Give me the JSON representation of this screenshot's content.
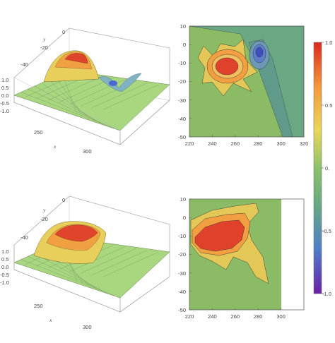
{
  "chart_data": [
    {
      "type": "surface3d",
      "panel": "top-left",
      "xlabel": "x",
      "ylabel": "y",
      "x_ticks": [
        "250",
        "300"
      ],
      "y_ticks": [
        "0",
        "-20",
        "-40"
      ],
      "z_ticks": [
        "1.0",
        "0.5",
        "0.0",
        "-0.5",
        "-1.0"
      ],
      "x_range": [
        220,
        320
      ],
      "y_range": [
        -50,
        10
      ],
      "z_range": [
        -1,
        1
      ],
      "features": [
        {
          "kind": "peak",
          "x": 250,
          "y": -12,
          "z": 0.85
        },
        {
          "kind": "trough",
          "x": 280,
          "y": -5,
          "z": -0.55
        }
      ]
    },
    {
      "type": "contour",
      "panel": "top-right",
      "x_ticks": [
        "220",
        "240",
        "260",
        "280",
        "300",
        "320"
      ],
      "y_ticks": [
        "10",
        "0",
        "-10",
        "-20",
        "-30",
        "-40",
        "-50"
      ],
      "x_range": [
        220,
        320
      ],
      "y_range": [
        -50,
        10
      ],
      "levels": [
        -0.75,
        -0.5,
        -0.25,
        0.25,
        0.5,
        0.75
      ],
      "features": [
        {
          "kind": "peak",
          "x": 250,
          "y": -12,
          "z": 0.85
        },
        {
          "kind": "trough",
          "x": 280,
          "y": -5,
          "z": -0.55
        }
      ]
    },
    {
      "type": "colorbar",
      "panel": "legend",
      "ticks": [
        "1.0",
        "0.5",
        "0.",
        "-0.5",
        "-1.0"
      ],
      "range": [
        -1,
        1
      ],
      "colors": [
        "#dd2a1e",
        "#f39b3c",
        "#e9d65a",
        "#8cc26b",
        "#67a883",
        "#4f7fc8",
        "#6a1fa8"
      ]
    },
    {
      "type": "surface3d",
      "panel": "bottom-left",
      "xlabel": "x",
      "ylabel": "y",
      "x_ticks": [
        "250",
        "300"
      ],
      "y_ticks": [
        "0",
        "-20",
        "-40"
      ],
      "z_ticks": [
        "1.0",
        "0.5",
        "0.0",
        "-0.5",
        "-1.0"
      ],
      "x_range": [
        220,
        320
      ],
      "y_range": [
        -50,
        10
      ],
      "z_range": [
        -1,
        1
      ],
      "features": [
        {
          "kind": "peak",
          "x": 240,
          "y": -12,
          "z": 0.9
        }
      ]
    },
    {
      "type": "contour",
      "panel": "bottom-right",
      "x_ticks": [
        "220",
        "240",
        "260",
        "280",
        "300"
      ],
      "y_ticks": [
        "10",
        "0",
        "-10",
        "-20",
        "-30",
        "-40",
        "-50"
      ],
      "x_range": [
        220,
        300
      ],
      "y_range": [
        -50,
        10
      ],
      "levels": [
        0.25,
        0.5,
        0.75
      ],
      "features": [
        {
          "kind": "peak",
          "x": 240,
          "y": -12,
          "z": 0.9
        }
      ]
    }
  ]
}
